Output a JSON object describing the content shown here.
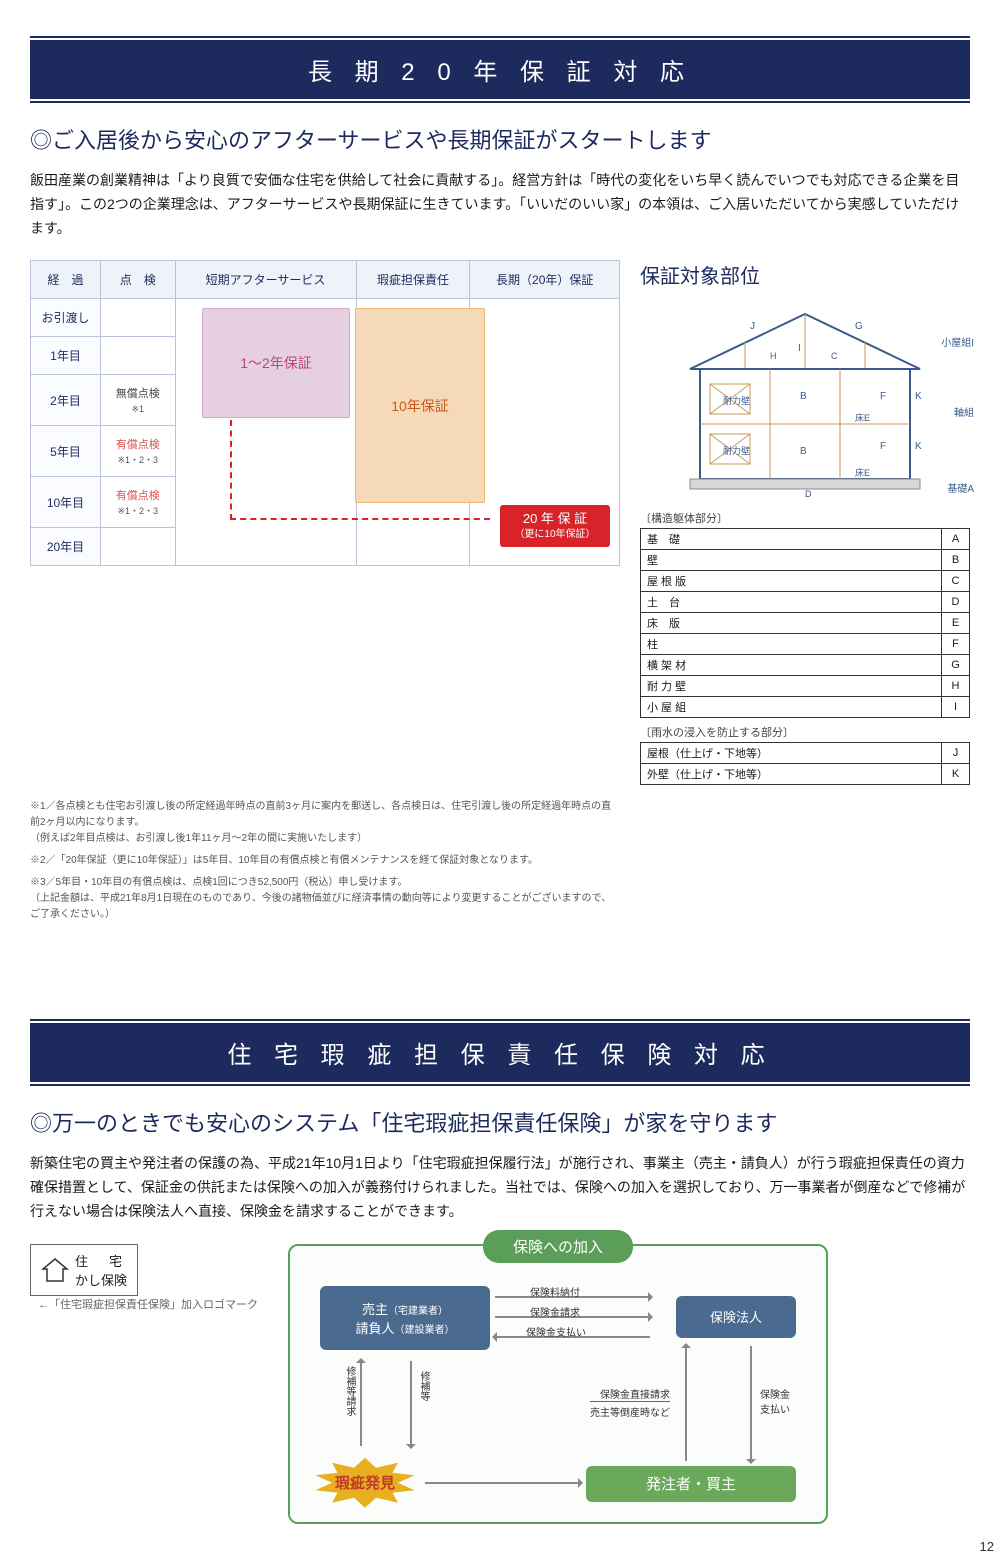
{
  "section1": {
    "banner": "長 期 2 0 年 保 証 対 応",
    "subhead": "◎ご入居後から安心のアフターサービスや長期保証がスタートします",
    "body": "飯田産業の創業精神は「より良質で安価な住宅を供給して社会に貢献する」。経営方針は「時代の変化をいち早く読んでいつでも対応できる企業を目指す」。この2つの企業理念は、アフターサービスや長期保証に生きています。「いいだのいい家」の本領は、ご入居いただいてから実感していただけます。",
    "table": {
      "headers": [
        "経　過",
        "点　検",
        "短期アフターサービス",
        "瑕疵担保責任",
        "長期（20年）保証"
      ],
      "rows": [
        {
          "label": "お引渡し",
          "inspect": ""
        },
        {
          "label": "1年目",
          "inspect": ""
        },
        {
          "label": "2年目",
          "inspect": "無償点検",
          "note": "※1"
        },
        {
          "label": "5年目",
          "inspect": "有償点検",
          "note": "※1・2・3"
        },
        {
          "label": "10年目",
          "inspect": "有償点検",
          "note": "※1・2・3"
        },
        {
          "label": "20年目",
          "inspect": ""
        }
      ],
      "pink_label": "1〜2年保証",
      "orange_label": "10年保証",
      "red_badge": "20 年 保 証",
      "red_badge_sub": "（更に10年保証）"
    },
    "footnotes": [
      "※1／各点検とも住宅お引渡し後の所定経過年時点の直前3ヶ月に案内を郵送し、各点検日は、住宅引渡し後の所定経過年時点の直前2ヶ月以内になります。",
      "（例えば2年目点検は、お引渡し後1年11ヶ月〜2年の間に実施いたします）",
      "※2／「20年保証（更に10年保証）」は5年目、10年目の有償点検と有償メンテナンスを経て保証対象となります。",
      "※3／5年目・10年目の有償点検は、点検1回につき52,500円（税込）申し受けます。",
      "（上記金額は、平成21年8月1日現在のものであり、今後の諸物価並びに経済事情の動向等により変更することがございますので、ご了承ください。）"
    ],
    "diagram": {
      "title": "保証対象部位",
      "labels": {
        "koyagumi": "小屋組I",
        "jikugumi": "軸組",
        "kiso": "基礎A"
      },
      "caption1": "〔構造躯体部分〕",
      "parts1": [
        [
          "基　礎",
          "A"
        ],
        [
          "壁",
          "B"
        ],
        [
          "屋 根 版",
          "C"
        ],
        [
          "土　台",
          "D"
        ],
        [
          "床　版",
          "E"
        ],
        [
          "柱",
          "F"
        ],
        [
          "横 架 材",
          "G"
        ],
        [
          "耐 力 壁",
          "H"
        ],
        [
          "小 屋 組",
          "I"
        ]
      ],
      "caption2": "〔雨水の浸入を防止する部分〕",
      "parts2": [
        [
          "屋根（仕上げ・下地等）",
          "J"
        ],
        [
          "外壁（仕上げ・下地等）",
          "K"
        ]
      ]
    }
  },
  "section2": {
    "banner": "住 宅 瑕 疵 担 保 責 任 保 険 対 応",
    "subhead": "◎万一のときでも安心のシステム「住宅瑕疵担保責任保険」が家を守ります",
    "body": "新築住宅の買主や発注者の保護の為、平成21年10月1日より「住宅瑕疵担保履行法」が施行され、事業主（売主・請負人）が行う瑕疵担保責任の資力確保措置として、保証金の供託または保険への加入が義務付けられました。当社では、保険への加入を選択しており、万一事業者が倒産などで修補が行えない場合は保険法人へ直接、保険金を請求することができます。",
    "logo": {
      "line1": "住　宅",
      "line2": "かし保険",
      "caption": "←「住宅瑕疵担保責任保険」加入ロゴマーク"
    },
    "flow": {
      "title": "保険への加入",
      "seller_l1": "売主",
      "seller_l1_sub": "（宅建業者）",
      "seller_l2": "請負人",
      "seller_l2_sub": "（建設業者）",
      "insurer": "保険法人",
      "buyer": "発注者・買主",
      "defect": "瑕疵発見",
      "arrows": {
        "a1": "保険料納付",
        "a2": "保険金請求",
        "a3": "保険金支払い",
        "a4": "修補等請求",
        "a5": "修補等",
        "a6": "保険金直接請求",
        "a6b": "売主等倒産時など",
        "a7": "保険金",
        "a7b": "支払い"
      }
    }
  },
  "page_number": "12"
}
